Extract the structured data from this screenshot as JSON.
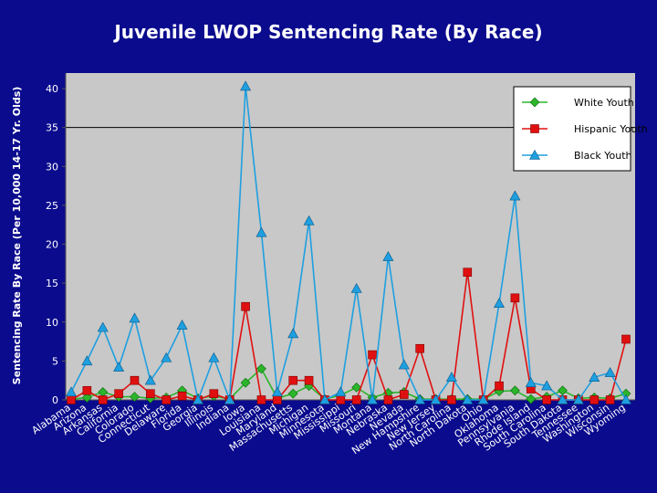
{
  "chart_data": {
    "type": "line",
    "title": "Juvenile LWOP Sentencing Rate (By Race)",
    "xlabel": "",
    "ylabel": "Sentencing Rate By Race (Per 10,000 14-17 Yr. Olds)",
    "ylim": [
      0,
      40
    ],
    "yticks": [
      "0",
      "5",
      "10",
      "15",
      "20",
      "25",
      "30",
      "35",
      "40"
    ],
    "grid": "horizontal at 35",
    "legend_position": "top-right",
    "categories": [
      "Alabama",
      "Arizona",
      "Arkansas",
      "California",
      "Colorado",
      "Connecticut",
      "Delaware",
      "Florida",
      "Georgia",
      "Illinois",
      "Indiana",
      "Iowa",
      "Louisiana",
      "Maryland",
      "Massachusetts",
      "Michigan",
      "Minnesota",
      "Mississippi",
      "Missouri",
      "Montana",
      "Nebraska",
      "Nevada",
      "New Hampshire",
      "New Jersey",
      "North Carolina",
      "North Dakota",
      "Ohio",
      "Oklahoma",
      "Pennsylvania",
      "Rhode Island",
      "South Carolina",
      "South Dakota",
      "Tennessee",
      "Washington",
      "Wisconsin",
      "Wyoming"
    ],
    "series": [
      {
        "name": "White Youth",
        "color": "#2bb52b",
        "marker": "diamond",
        "values": [
          0.1,
          0.3,
          1.0,
          0.4,
          0.4,
          0.2,
          0.3,
          1.2,
          0.2,
          0.5,
          0.1,
          2.2,
          4.0,
          0.2,
          0.8,
          1.8,
          0.1,
          0.6,
          1.6,
          0.3,
          0.9,
          1.0,
          0.1,
          0.1,
          0.1,
          0.1,
          0.1,
          1.1,
          1.2,
          0.1,
          0.4,
          1.2,
          0.2,
          0.3,
          0.2,
          0.8
        ]
      },
      {
        "name": "Hispanic Youth",
        "color": "#e01010",
        "marker": "square",
        "values": [
          0.0,
          1.2,
          0.0,
          0.8,
          2.5,
          0.8,
          0.0,
          0.5,
          0.0,
          0.8,
          0.0,
          12.0,
          0.0,
          0.0,
          2.5,
          2.5,
          0.0,
          0.0,
          0.0,
          5.8,
          0.0,
          0.7,
          6.6,
          0.0,
          0.0,
          16.4,
          0.0,
          1.8,
          13.1,
          1.4,
          0.0,
          0.0,
          0.0,
          0.0,
          0.0,
          7.8
        ]
      },
      {
        "name": "Black Youth",
        "color": "#1e9fe0",
        "marker": "triangle",
        "values": [
          1.0,
          5.0,
          9.3,
          4.2,
          10.5,
          2.5,
          5.4,
          9.6,
          0.0,
          5.4,
          0.0,
          40.3,
          21.5,
          1.0,
          8.5,
          23.0,
          0.0,
          1.0,
          14.3,
          0.0,
          18.4,
          4.5,
          0.0,
          0.0,
          2.9,
          0.0,
          0.0,
          12.4,
          26.2,
          2.2,
          1.8,
          0.0,
          0.0,
          2.9,
          3.5,
          0.0
        ]
      }
    ]
  }
}
